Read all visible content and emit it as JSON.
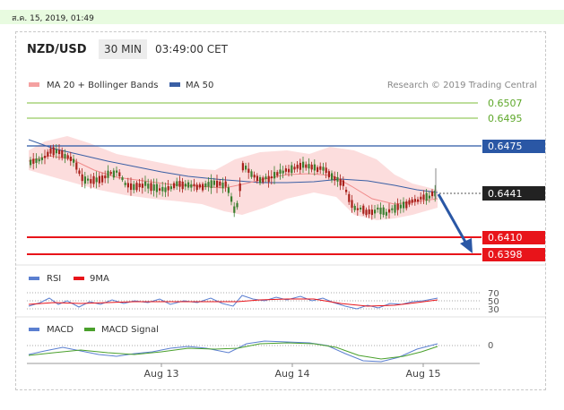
{
  "header": {
    "datetime": "ส.ค. 15, 2019, 01:49",
    "symbol": "NZD/USD",
    "timeframe": "30 MIN",
    "time": "03:49:00 CET"
  },
  "main_legend": {
    "bollinger": "MA 20 + Bollinger Bands",
    "ma50": "MA 50",
    "credit": "Research © 2019 Trading Central"
  },
  "levels": {
    "l1": "0.6507",
    "l2": "0.6495",
    "l3": "0.6475",
    "current": "0.6441",
    "l4": "0.6410",
    "l5": "0.6398"
  },
  "rsi": {
    "label": "RSI",
    "ma_label": "9MA",
    "ticks": [
      "70",
      "50",
      "30"
    ]
  },
  "macd": {
    "label": "MACD",
    "signal_label": "MACD Signal",
    "tick": "0"
  },
  "xaxis": {
    "labels": [
      "Aug 13",
      "Aug 14",
      "Aug 15"
    ]
  },
  "colors": {
    "green_level": "#7cbd3a",
    "blue_level": "#2a57a5",
    "red_level": "#e8141a",
    "ma20": "#f4a1a1",
    "ma50": "#3a5fa5",
    "band_fill": "#fbd7d7",
    "bull": "#3b7f2f",
    "bear": "#a8201a"
  }
}
